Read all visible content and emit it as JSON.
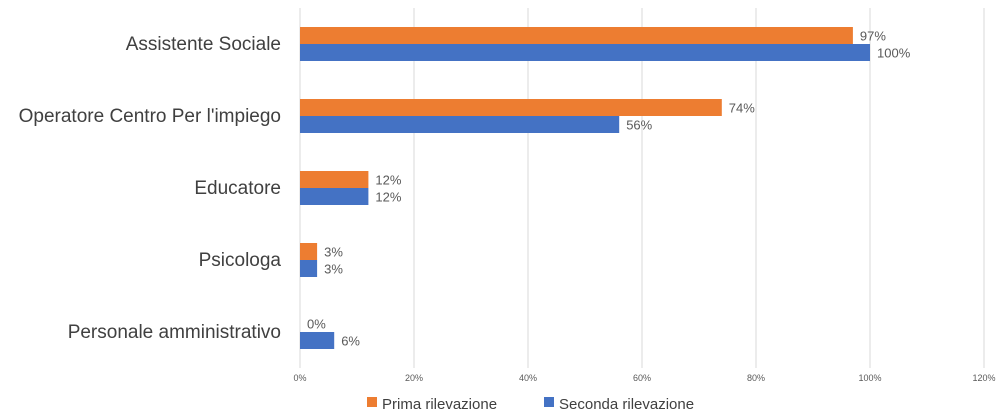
{
  "chart_data": {
    "type": "bar",
    "orientation": "horizontal",
    "categories": [
      "Assistente Sociale",
      "Operatore Centro Per l'impiego",
      "Educatore",
      "Psicologa",
      "Personale amministrativo"
    ],
    "series": [
      {
        "name": "Prima rilevazione",
        "values": [
          97,
          74,
          12,
          3,
          0
        ],
        "labels": [
          "97%",
          "74%",
          "12%",
          "3%",
          "0%"
        ],
        "color": "#ed7d31"
      },
      {
        "name": "Seconda rilevazione",
        "values": [
          100,
          56,
          12,
          3,
          6
        ],
        "labels": [
          "100%",
          "56%",
          "12%",
          "3%",
          "6%"
        ],
        "color": "#4472c4"
      }
    ],
    "xlim": [
      0,
      120
    ],
    "xticks": [
      "0%",
      "20%",
      "40%",
      "60%",
      "80%",
      "100%",
      "120%"
    ],
    "grid": true,
    "legend_position": "bottom"
  }
}
